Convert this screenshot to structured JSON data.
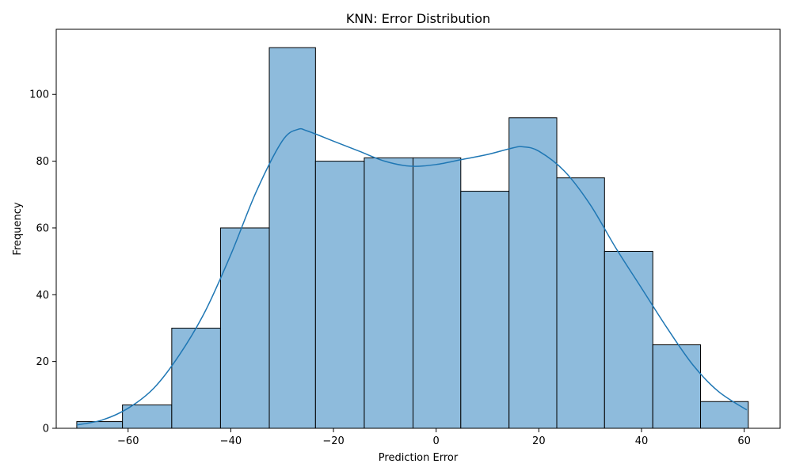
{
  "chart_data": {
    "type": "bar",
    "title": "KNN: Error Distribution",
    "xlabel": "Prediction Error",
    "ylabel": "Frequency",
    "bin_edges": [
      -70,
      -61.1,
      -51.5,
      -42.0,
      -32.5,
      -23.5,
      -14.0,
      -4.5,
      4.8,
      14.2,
      23.5,
      32.8,
      42.2,
      51.5,
      60.8
    ],
    "values": [
      2,
      7,
      30,
      60,
      114,
      80,
      81,
      81,
      71,
      93,
      75,
      53,
      25,
      8
    ],
    "xlim": [
      -74,
      67
    ],
    "ylim": [
      0,
      119.5
    ],
    "xticks": [
      -60,
      -40,
      -20,
      0,
      20,
      40,
      60
    ],
    "yticks": [
      0,
      20,
      40,
      60,
      80,
      100
    ],
    "bar_color": "#8ebbdc",
    "bar_edge_color": "#000000",
    "kde": {
      "name": "",
      "color": "#1f77b4",
      "x": [
        -70,
        -65,
        -60,
        -55,
        -50,
        -45,
        -40,
        -35,
        -30,
        -27,
        -25,
        -20,
        -15,
        -10,
        -5,
        0,
        5,
        10,
        15,
        17,
        20,
        25,
        30,
        35,
        40,
        45,
        50,
        55,
        60.5
      ],
      "y": [
        1,
        2.5,
        6,
        12,
        22,
        35,
        52,
        71,
        86,
        89.5,
        89,
        86,
        83,
        80,
        78.5,
        79,
        80.5,
        82,
        84,
        84.3,
        83,
        77,
        67,
        54,
        42,
        30,
        19,
        11,
        5.5
      ]
    },
    "grid": false,
    "legend": "none"
  }
}
